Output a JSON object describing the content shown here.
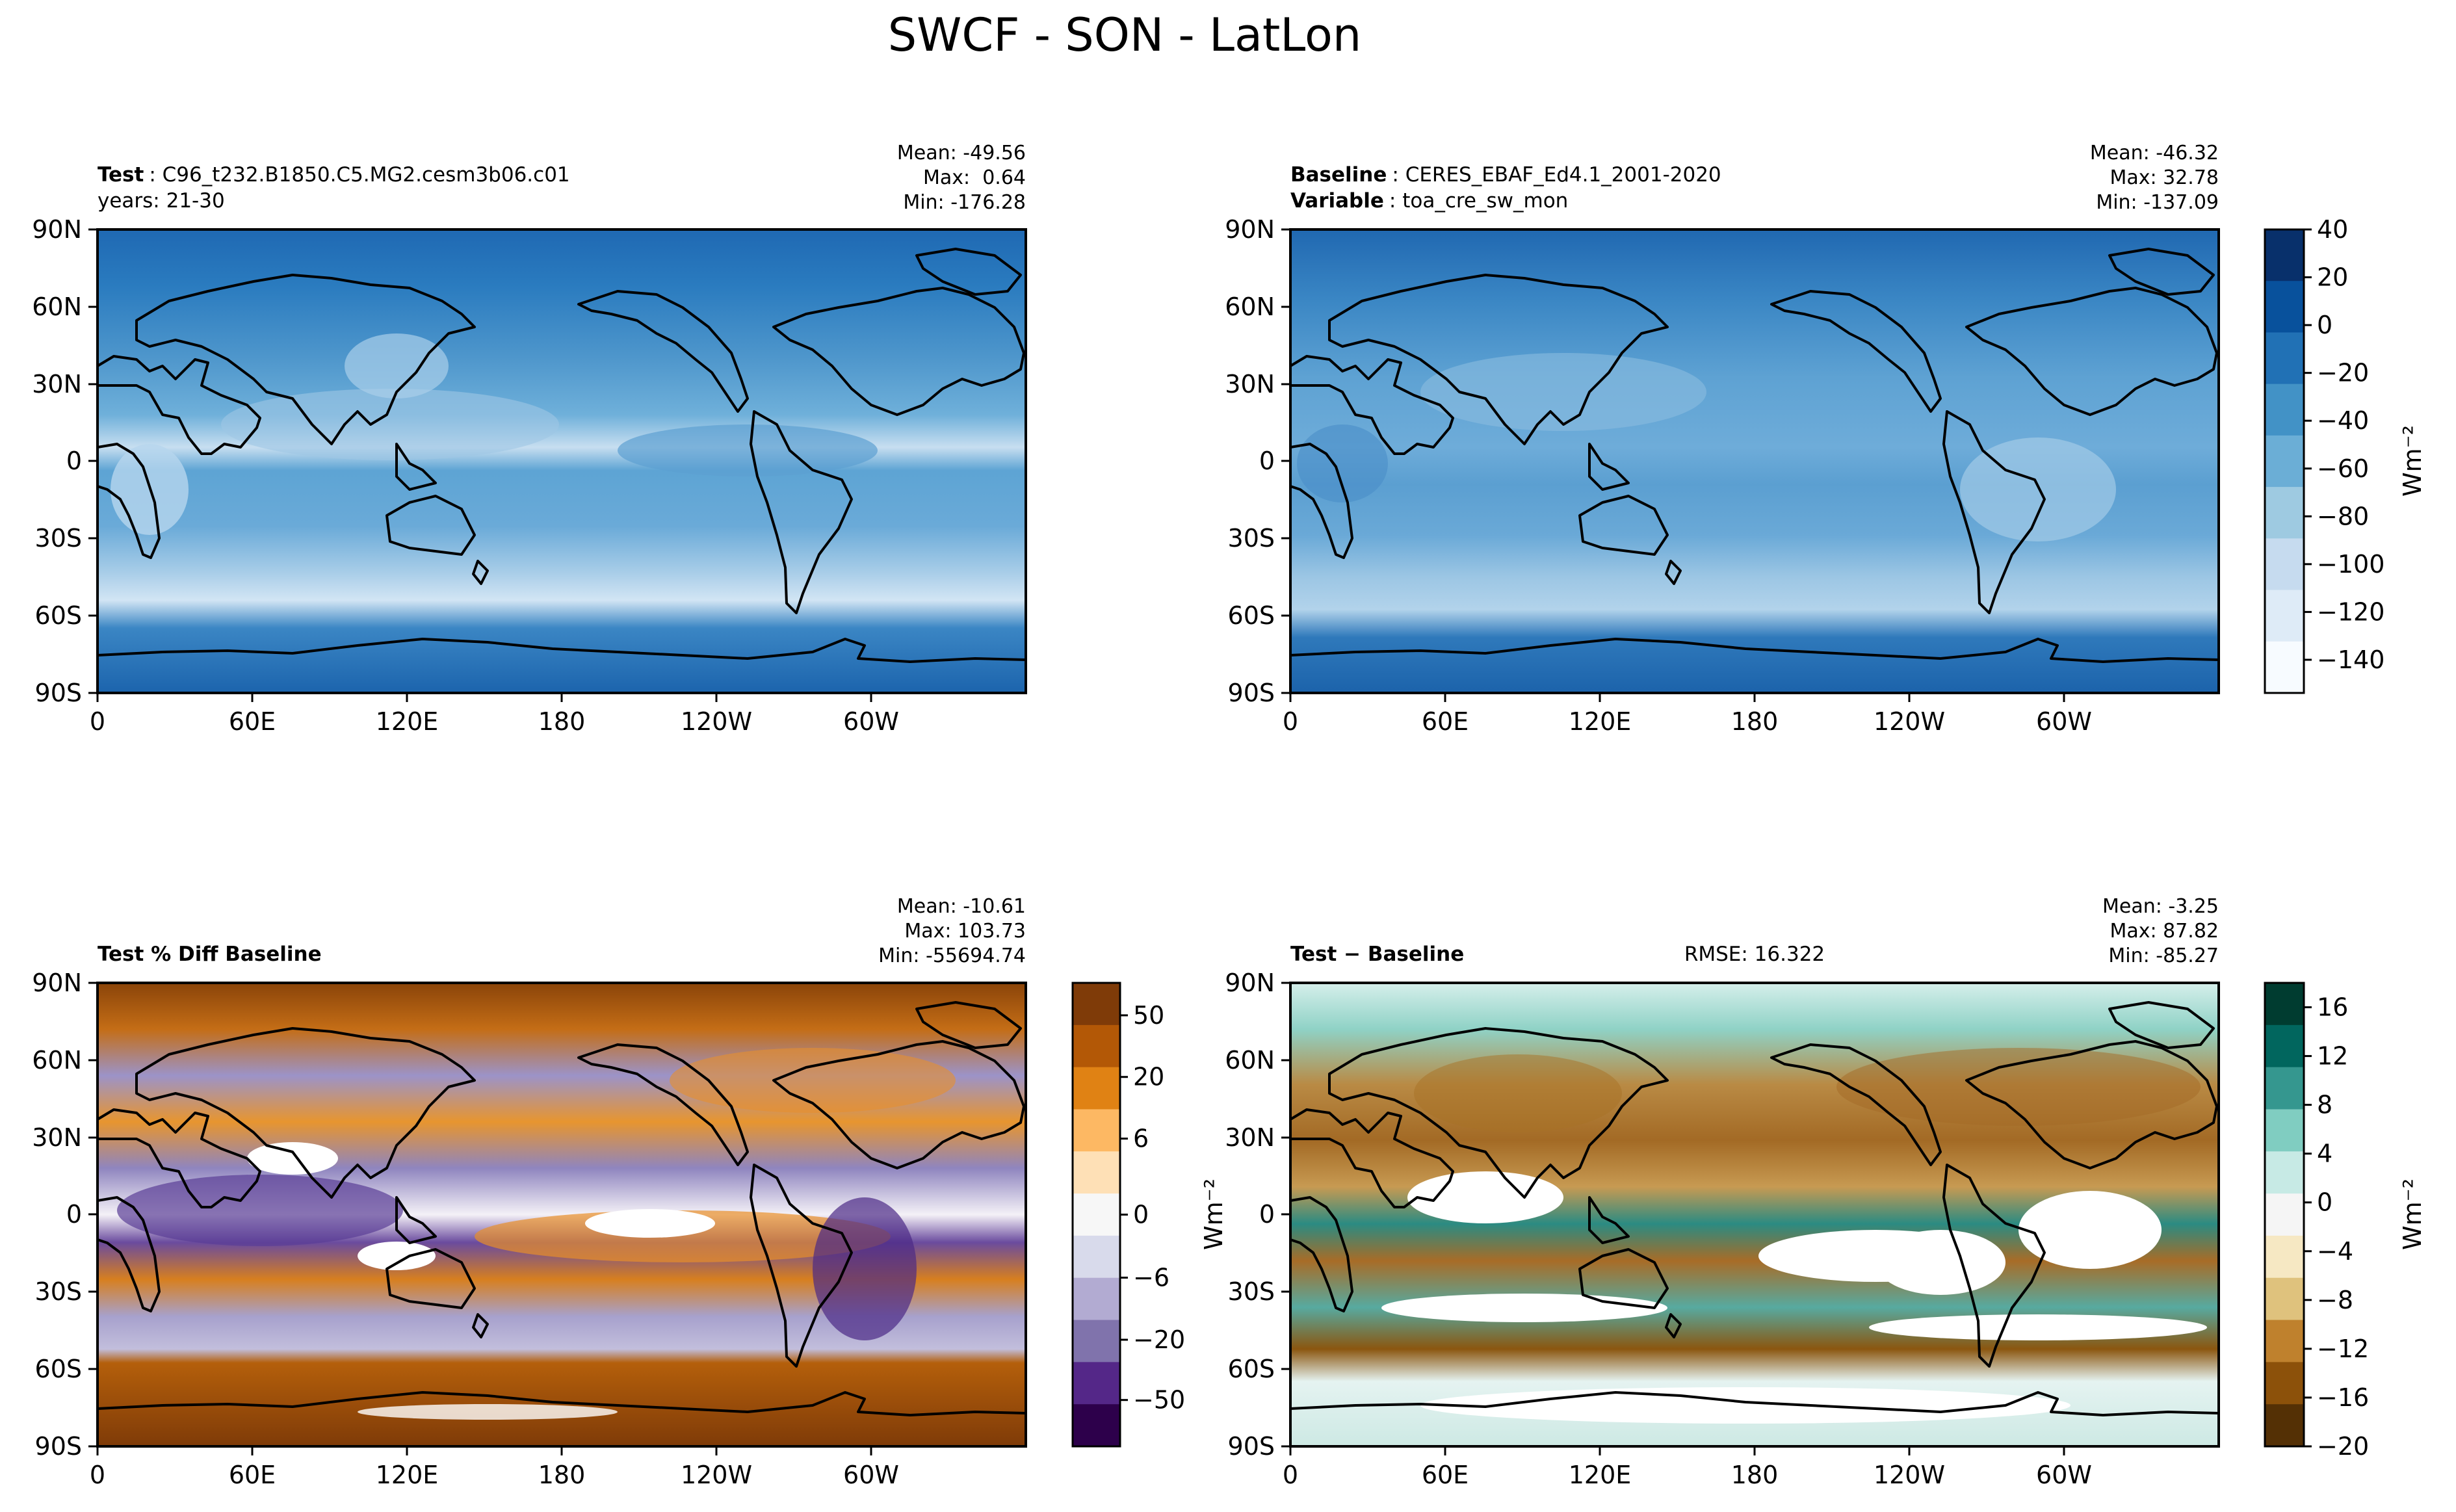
{
  "title": "SWCF - SON - LatLon",
  "panels": [
    {
      "id": "test",
      "label_bold": "Test",
      "label_text": "C96_t232.B1850.C5.MG2.cesm3b06.c01",
      "line2_bold": "",
      "line2_text": "years: 21-30",
      "stats": [
        "Mean: -49.56",
        "Max:  0.64",
        "Min: -176.28"
      ],
      "rmse": ""
    },
    {
      "id": "baseline",
      "label_bold": "Baseline",
      "label_text": "CERES_EBAF_Ed4.1_2001-2020",
      "line2_bold": "Variable",
      "line2_text": "toa_cre_sw_mon",
      "stats": [
        "Mean: -46.32",
        "Max: 32.78",
        "Min: -137.09"
      ],
      "rmse": ""
    },
    {
      "id": "pctdiff",
      "label_bold": "Test % Diff Baseline",
      "label_text": "",
      "line2_bold": "",
      "line2_text": "",
      "stats": [
        "Mean: -10.61",
        "Max: 103.73",
        "Min: -55694.74"
      ],
      "rmse": ""
    },
    {
      "id": "diff",
      "label_bold": "Test − Baseline",
      "label_text": "",
      "line2_bold": "",
      "line2_text": "",
      "stats": [
        "Mean: -3.25",
        "Max: 87.82",
        "Min: -85.27"
      ],
      "rmse": "RMSE: 16.322"
    }
  ],
  "axes": {
    "lat_ticks": [
      "90N",
      "60N",
      "30N",
      "0",
      "30S",
      "60S",
      "90S"
    ],
    "lon_ticks": [
      "0",
      "60E",
      "120E",
      "180",
      "120W",
      "60W"
    ]
  },
  "colorbars": [
    {
      "id": "cb-main",
      "ticks": [
        "40",
        "20",
        "0",
        "−20",
        "−40",
        "−60",
        "−80",
        "−100",
        "−120",
        "−140"
      ],
      "unit": "Wm⁻²",
      "colors": [
        "#08306b",
        "#08519c",
        "#2171b5",
        "#4292c6",
        "#6baed6",
        "#9ecae1",
        "#c6dbef",
        "#deebf7",
        "#f7fbff"
      ]
    },
    {
      "id": "cb-pct",
      "ticks": [
        "50",
        "20",
        "6",
        "0",
        "−6",
        "−20",
        "−50"
      ],
      "unit": "",
      "colors": [
        "#7f3b08",
        "#b35806",
        "#e08214",
        "#fdb863",
        "#fee0b6",
        "#f7f7f7",
        "#d8daeb",
        "#b2abd2",
        "#8073ac",
        "#542788",
        "#2d004b"
      ]
    },
    {
      "id": "cb-diff",
      "ticks": [
        "16",
        "12",
        "8",
        "4",
        "0",
        "−4",
        "−8",
        "−12",
        "−16",
        "−20"
      ],
      "unit": "Wm⁻²",
      "colors": [
        "#003c30",
        "#01665e",
        "#35978f",
        "#80cdc1",
        "#c7eae5",
        "#f5f5f5",
        "#f6e8c3",
        "#dfc27d",
        "#bf812d",
        "#8c510a",
        "#543005"
      ]
    }
  ],
  "diff_ylabel": "Wm⁻²",
  "chart_data": [
    {
      "type": "heatmap",
      "title": "Test",
      "subtitle": "C96_t232.B1850.C5.MG2.cesm3b06.c01 years: 21-30",
      "projection": "PlateCarree (lat/lon)",
      "xlim": [
        0,
        360
      ],
      "ylim": [
        -90,
        90
      ],
      "colorbar_range": [
        -150,
        40
      ],
      "stats": {
        "mean": -49.56,
        "max": 0.64,
        "min": -176.28
      }
    },
    {
      "type": "heatmap",
      "title": "Baseline",
      "subtitle": "CERES_EBAF_Ed4.1_2001-2020, toa_cre_sw_mon",
      "projection": "PlateCarree (lat/lon)",
      "xlim": [
        0,
        360
      ],
      "ylim": [
        -90,
        90
      ],
      "colorbar_range": [
        -150,
        40
      ],
      "stats": {
        "mean": -46.32,
        "max": 32.78,
        "min": -137.09
      }
    },
    {
      "type": "heatmap",
      "title": "Test % Diff Baseline",
      "projection": "PlateCarree (lat/lon)",
      "xlim": [
        0,
        360
      ],
      "ylim": [
        -90,
        90
      ],
      "colorbar_ticks": [
        -50,
        -20,
        -6,
        0,
        6,
        20,
        50
      ],
      "stats": {
        "mean": -10.61,
        "max": 103.73,
        "min": -55694.74
      }
    },
    {
      "type": "heatmap",
      "title": "Test − Baseline",
      "projection": "PlateCarree (lat/lon)",
      "xlim": [
        0,
        360
      ],
      "ylim": [
        -90,
        90
      ],
      "colorbar_range": [
        -20,
        18
      ],
      "stats": {
        "mean": -3.25,
        "max": 87.82,
        "min": -85.27,
        "rmse": 16.322
      }
    }
  ]
}
